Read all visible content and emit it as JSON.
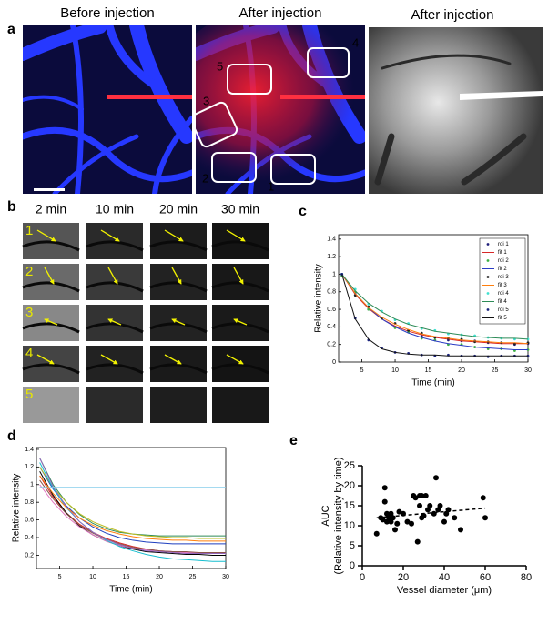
{
  "panel_a": {
    "label": "a",
    "titles": [
      "Before injection",
      "After injection",
      "After injection"
    ],
    "roi_labels": [
      "1",
      "2",
      "3",
      "4",
      "5"
    ]
  },
  "panel_b": {
    "label": "b",
    "times": [
      "2 min",
      "10 min",
      "20 min",
      "30 min"
    ],
    "rows": [
      "1",
      "2",
      "3",
      "4",
      "5"
    ]
  },
  "chart_data": [
    {
      "type": "line",
      "panel_label": "c",
      "ylabel": "Relative intensity",
      "xlabel": "Time (min)",
      "xlim": [
        1.5,
        30
      ],
      "ylim": [
        0,
        1.45
      ],
      "xticks": [
        5,
        10,
        15,
        20,
        25,
        30
      ],
      "yticks": [
        0,
        0.2,
        0.4,
        0.6,
        0.8,
        1,
        1.2,
        1.4
      ],
      "frame": true,
      "legend": "upper right",
      "x": [
        2,
        4,
        6,
        8,
        10,
        12,
        14,
        16,
        18,
        20,
        22,
        24,
        26,
        28,
        30
      ],
      "series": [
        {
          "name": "roi 1",
          "color": "#1f1f7a",
          "mode": "markers",
          "values": [
            1,
            0.79,
            0.6,
            0.5,
            0.4,
            0.36,
            0.3,
            0.28,
            0.25,
            0.24,
            0.24,
            0.22,
            0.22,
            0.2,
            0.21
          ]
        },
        {
          "name": "fit 1",
          "color": "#d62728",
          "mode": "lines",
          "values": [
            1,
            0.77,
            0.61,
            0.49,
            0.41,
            0.35,
            0.31,
            0.28,
            0.26,
            0.24,
            0.23,
            0.22,
            0.21,
            0.21,
            0.21
          ]
        },
        {
          "name": "roi 2",
          "color": "#3cb043",
          "mode": "markers",
          "values": [
            0.98,
            0.8,
            0.6,
            0.5,
            0.39,
            0.34,
            0.27,
            0.25,
            0.2,
            0.2,
            0.17,
            0.15,
            0.15,
            0.13,
            0.14
          ]
        },
        {
          "name": "fit 2",
          "color": "#2b3cc4",
          "mode": "lines",
          "values": [
            1,
            0.78,
            0.62,
            0.49,
            0.4,
            0.33,
            0.28,
            0.24,
            0.21,
            0.19,
            0.17,
            0.16,
            0.15,
            0.14,
            0.14
          ]
        },
        {
          "name": "roi 3",
          "color": "#222222",
          "mode": "markers",
          "values": [
            1,
            0.76,
            0.63,
            0.5,
            0.44,
            0.36,
            0.33,
            0.28,
            0.27,
            0.26,
            0.23,
            0.23,
            0.22,
            0.21,
            0.22
          ]
        },
        {
          "name": "fit 3",
          "color": "#ff7f0e",
          "mode": "lines",
          "values": [
            1,
            0.78,
            0.62,
            0.51,
            0.43,
            0.37,
            0.32,
            0.29,
            0.27,
            0.25,
            0.24,
            0.23,
            0.22,
            0.22,
            0.21
          ]
        },
        {
          "name": "roi 4",
          "color": "#40e0d0",
          "mode": "markers",
          "values": [
            1,
            0.83,
            0.66,
            0.58,
            0.48,
            0.44,
            0.38,
            0.36,
            0.32,
            0.31,
            0.3,
            0.28,
            0.27,
            0.26,
            0.26
          ]
        },
        {
          "name": "fit 4",
          "color": "#2e8b57",
          "mode": "lines",
          "values": [
            1,
            0.81,
            0.67,
            0.57,
            0.49,
            0.43,
            0.39,
            0.35,
            0.33,
            0.31,
            0.29,
            0.28,
            0.27,
            0.27,
            0.26
          ]
        },
        {
          "name": "roi 5",
          "color": "#1a237e",
          "mode": "markers",
          "values": [
            1,
            0.5,
            0.25,
            0.16,
            0.11,
            0.1,
            0.08,
            0.07,
            0.08,
            0.07,
            0.07,
            0.06,
            0.07,
            0.07,
            0.07
          ]
        },
        {
          "name": "fit 5",
          "color": "#111111",
          "mode": "lines",
          "values": [
            1,
            0.49,
            0.26,
            0.15,
            0.11,
            0.09,
            0.08,
            0.08,
            0.07,
            0.07,
            0.07,
            0.07,
            0.07,
            0.07,
            0.07
          ]
        }
      ]
    },
    {
      "type": "line",
      "panel_label": "d",
      "ylabel": "Relative intensity",
      "xlabel": "Time (min)",
      "xlim": [
        1.5,
        30
      ],
      "ylim": [
        0.05,
        1.42
      ],
      "xticks": [
        5,
        10,
        15,
        20,
        25,
        30
      ],
      "yticks": [
        0.2,
        0.4,
        0.6,
        0.8,
        1,
        1.2,
        1.4
      ],
      "frame": true,
      "x": [
        2,
        4,
        6,
        8,
        10,
        12,
        14,
        16,
        18,
        20,
        22,
        24,
        26,
        28,
        30
      ],
      "series": [
        {
          "color": "#2e8b57",
          "mode": "lines",
          "values": [
            1.3,
            1.0,
            0.8,
            0.66,
            0.56,
            0.5,
            0.46,
            0.44,
            0.43,
            0.42,
            0.42,
            0.42,
            0.42,
            0.42,
            0.42
          ]
        },
        {
          "color": "#1f3fbf",
          "mode": "lines",
          "values": [
            1.2,
            0.95,
            0.76,
            0.62,
            0.52,
            0.45,
            0.4,
            0.37,
            0.35,
            0.34,
            0.33,
            0.33,
            0.33,
            0.33,
            0.33
          ]
        },
        {
          "color": "#d62728",
          "mode": "lines",
          "values": [
            1.1,
            0.86,
            0.68,
            0.55,
            0.46,
            0.39,
            0.34,
            0.3,
            0.27,
            0.25,
            0.24,
            0.23,
            0.22,
            0.22,
            0.22
          ]
        },
        {
          "color": "#000000",
          "mode": "lines",
          "values": [
            1.15,
            0.88,
            0.68,
            0.53,
            0.43,
            0.36,
            0.31,
            0.27,
            0.24,
            0.23,
            0.22,
            0.21,
            0.21,
            0.2,
            0.2
          ]
        },
        {
          "color": "#e377c2",
          "mode": "lines",
          "values": [
            1.0,
            0.8,
            0.64,
            0.52,
            0.43,
            0.36,
            0.31,
            0.28,
            0.26,
            0.25,
            0.24,
            0.23,
            0.23,
            0.23,
            0.23
          ]
        },
        {
          "color": "#bcbd22",
          "mode": "lines",
          "values": [
            1.2,
            0.97,
            0.8,
            0.67,
            0.58,
            0.52,
            0.47,
            0.44,
            0.42,
            0.41,
            0.4,
            0.4,
            0.39,
            0.39,
            0.39
          ]
        },
        {
          "color": "#17becf",
          "mode": "lines",
          "values": [
            1.25,
            0.96,
            0.74,
            0.58,
            0.46,
            0.37,
            0.3,
            0.25,
            0.21,
            0.18,
            0.16,
            0.15,
            0.14,
            0.13,
            0.13
          ]
        },
        {
          "color": "#8c564b",
          "mode": "lines",
          "values": [
            1.05,
            0.84,
            0.67,
            0.54,
            0.45,
            0.38,
            0.33,
            0.29,
            0.27,
            0.25,
            0.24,
            0.24,
            0.23,
            0.23,
            0.23
          ]
        },
        {
          "color": "#9467bd",
          "mode": "lines",
          "values": [
            1.3,
            0.98,
            0.75,
            0.58,
            0.46,
            0.38,
            0.32,
            0.28,
            0.25,
            0.24,
            0.23,
            0.22,
            0.22,
            0.22,
            0.22
          ]
        },
        {
          "color": "#87ceeb",
          "mode": "lines",
          "values": [
            0.97,
            0.97,
            0.97,
            0.97,
            0.97,
            0.97,
            0.97,
            0.97,
            0.97,
            0.97,
            0.97,
            0.97,
            0.97,
            0.97,
            0.97
          ]
        },
        {
          "color": "#ff7f0e",
          "mode": "lines",
          "values": [
            1.1,
            0.9,
            0.74,
            0.62,
            0.54,
            0.48,
            0.44,
            0.41,
            0.39,
            0.38,
            0.37,
            0.37,
            0.36,
            0.36,
            0.36
          ]
        }
      ]
    },
    {
      "type": "scatter",
      "panel_label": "e",
      "ylabel": [
        "AUC",
        "(Relative intensity by time)"
      ],
      "xlabel": "Vessel diameter (μm)",
      "xlim": [
        0,
        80
      ],
      "ylim": [
        0,
        25
      ],
      "xticks": [
        0,
        20,
        40,
        60,
        80
      ],
      "yticks": [
        0,
        5,
        10,
        15,
        20,
        25
      ],
      "frame": false,
      "color": "#000000",
      "x": [
        7,
        9,
        10,
        11,
        11,
        12,
        12,
        13,
        13,
        14,
        14,
        15,
        16,
        17,
        18,
        20,
        22,
        24,
        25,
        26,
        27,
        28,
        28,
        29,
        29,
        30,
        31,
        32,
        33,
        35,
        36,
        37,
        38,
        40,
        41,
        42,
        45,
        48,
        59,
        60
      ],
      "values": [
        8,
        12,
        11.5,
        16,
        19.5,
        13,
        11,
        12.5,
        12,
        11,
        13,
        12,
        9,
        10.5,
        13.5,
        13,
        11,
        10.5,
        17.5,
        17,
        6,
        17.5,
        15,
        17.5,
        12,
        12.5,
        17.5,
        14,
        15,
        13,
        22,
        14,
        15,
        11,
        13,
        14,
        12,
        9,
        17,
        12
      ],
      "trend": {
        "x": [
          7,
          60
        ],
        "values": [
          12,
          14.4
        ]
      }
    }
  ]
}
